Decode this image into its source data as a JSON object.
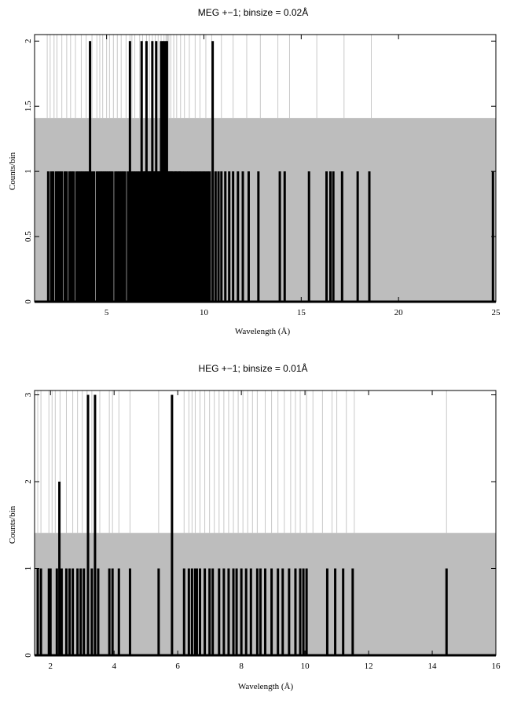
{
  "chart_data": [
    {
      "type": "histogram",
      "title": "MEG +−1; binsize = 0.02Å",
      "xlabel": "Wavelength (Å)",
      "ylabel": "Counts/bin",
      "xlim": [
        1.3,
        25
      ],
      "ylim": [
        0,
        2.05
      ],
      "x_ticks": [
        5,
        10,
        15,
        20,
        25
      ],
      "y_ticks": [
        0,
        0.5,
        1,
        1.5,
        2
      ],
      "y_tick_labels": [
        "0",
        "0.5",
        "1",
        "1.5",
        "2"
      ],
      "binsize": 0.02,
      "background_level": 1.41,
      "background_color": "#bdbdbd",
      "background_lines": [
        1.95,
        2.1,
        2.3,
        2.45,
        2.7,
        2.95,
        3.15,
        3.4,
        3.7,
        3.95,
        4.25,
        4.5,
        4.65,
        4.8,
        5.0,
        5.15,
        5.35,
        5.55,
        5.75,
        6.0,
        6.2,
        6.3,
        6.45,
        6.7,
        6.85,
        7.05,
        7.2,
        7.35,
        7.5,
        7.65,
        7.8,
        7.95,
        8.05,
        8.1,
        8.15,
        8.2,
        8.3,
        8.45,
        8.6,
        8.8,
        9.0,
        9.25,
        9.55,
        9.8,
        10.1,
        10.4,
        10.9,
        11.5,
        12.2,
        12.9,
        13.8,
        14.4,
        15.8,
        17.2,
        18.6
      ],
      "counts2_x": [
        4.15,
        6.2,
        6.8,
        7.05,
        7.35,
        7.55,
        7.8,
        7.9,
        8.0,
        8.1,
        10.45
      ],
      "counts1_x": [
        2.0,
        2.15,
        2.25,
        2.4,
        2.5,
        2.6,
        2.7,
        2.85,
        2.95,
        3.1,
        3.2,
        3.3,
        3.45,
        3.55,
        3.65,
        3.75,
        3.85,
        3.95,
        4.05,
        4.25,
        4.35,
        4.5,
        4.6,
        4.7,
        4.8,
        4.9,
        5.0,
        5.1,
        5.2,
        5.3,
        5.45,
        5.55,
        5.65,
        5.75,
        5.85,
        5.95,
        6.1,
        6.3,
        6.4,
        6.5,
        6.6,
        6.7,
        6.9,
        6.95,
        7.0,
        7.1,
        7.15,
        7.2,
        7.25,
        7.3,
        7.4,
        7.45,
        7.5,
        7.6,
        7.65,
        7.7,
        7.75,
        7.85,
        7.95,
        8.05,
        8.15,
        8.2,
        8.25,
        8.3,
        8.35,
        8.4,
        8.5,
        8.55,
        8.6,
        8.7,
        8.75,
        8.8,
        8.9,
        9.0,
        9.1,
        9.2,
        9.3,
        9.4,
        9.5,
        9.6,
        9.7,
        9.8,
        9.9,
        10.0,
        10.1,
        10.2,
        10.3,
        10.6,
        10.75,
        10.9,
        11.1,
        11.3,
        11.5,
        11.75,
        12.0,
        12.3,
        12.8,
        13.9,
        14.15,
        15.4,
        16.3,
        16.5,
        16.65,
        17.1,
        17.9,
        18.5,
        24.85
      ]
    },
    {
      "type": "histogram",
      "title": "HEG +−1; binsize = 0.01Å",
      "xlabel": "Wavelength (Å)",
      "ylabel": "Counts/bin",
      "xlim": [
        1.5,
        16
      ],
      "ylim": [
        0,
        3.05
      ],
      "x_ticks": [
        2,
        4,
        6,
        8,
        10,
        12,
        14,
        16
      ],
      "y_ticks": [
        0,
        1,
        2,
        3
      ],
      "y_tick_labels": [
        "0",
        "1",
        "2",
        "3"
      ],
      "binsize": 0.01,
      "background_level": 1.41,
      "background_color": "#bdbdbd",
      "background_lines": [
        1.6,
        1.7,
        1.95,
        2.05,
        2.15,
        2.3,
        2.5,
        2.7,
        2.85,
        3.0,
        3.15,
        3.3,
        3.55,
        3.85,
        3.95,
        4.15,
        4.5,
        5.4,
        6.2,
        6.35,
        6.45,
        6.55,
        6.7,
        6.85,
        7.0,
        7.15,
        7.3,
        7.45,
        7.6,
        7.75,
        7.9,
        8.05,
        8.2,
        8.35,
        8.5,
        8.75,
        8.95,
        9.15,
        9.35,
        9.55,
        9.7,
        9.85,
        10.05,
        10.25,
        10.55,
        10.85,
        11.0,
        11.3,
        11.55,
        14.45
      ],
      "counts3_x": [
        3.18,
        3.4,
        5.82
      ],
      "counts2_x": [
        2.28
      ],
      "counts1_x": [
        1.6,
        1.7,
        1.95,
        2.0,
        2.2,
        2.35,
        2.5,
        2.6,
        2.7,
        2.85,
        2.95,
        3.05,
        3.3,
        3.5,
        3.85,
        3.95,
        4.15,
        4.5,
        5.4,
        6.2,
        6.35,
        6.45,
        6.55,
        6.6,
        6.7,
        6.85,
        7.0,
        7.1,
        7.3,
        7.45,
        7.6,
        7.75,
        7.85,
        8.0,
        8.15,
        8.3,
        8.5,
        8.6,
        8.75,
        8.95,
        9.15,
        9.3,
        9.5,
        9.7,
        9.85,
        9.95,
        10.05,
        10.7,
        10.95,
        11.2,
        11.5,
        14.45
      ]
    }
  ]
}
